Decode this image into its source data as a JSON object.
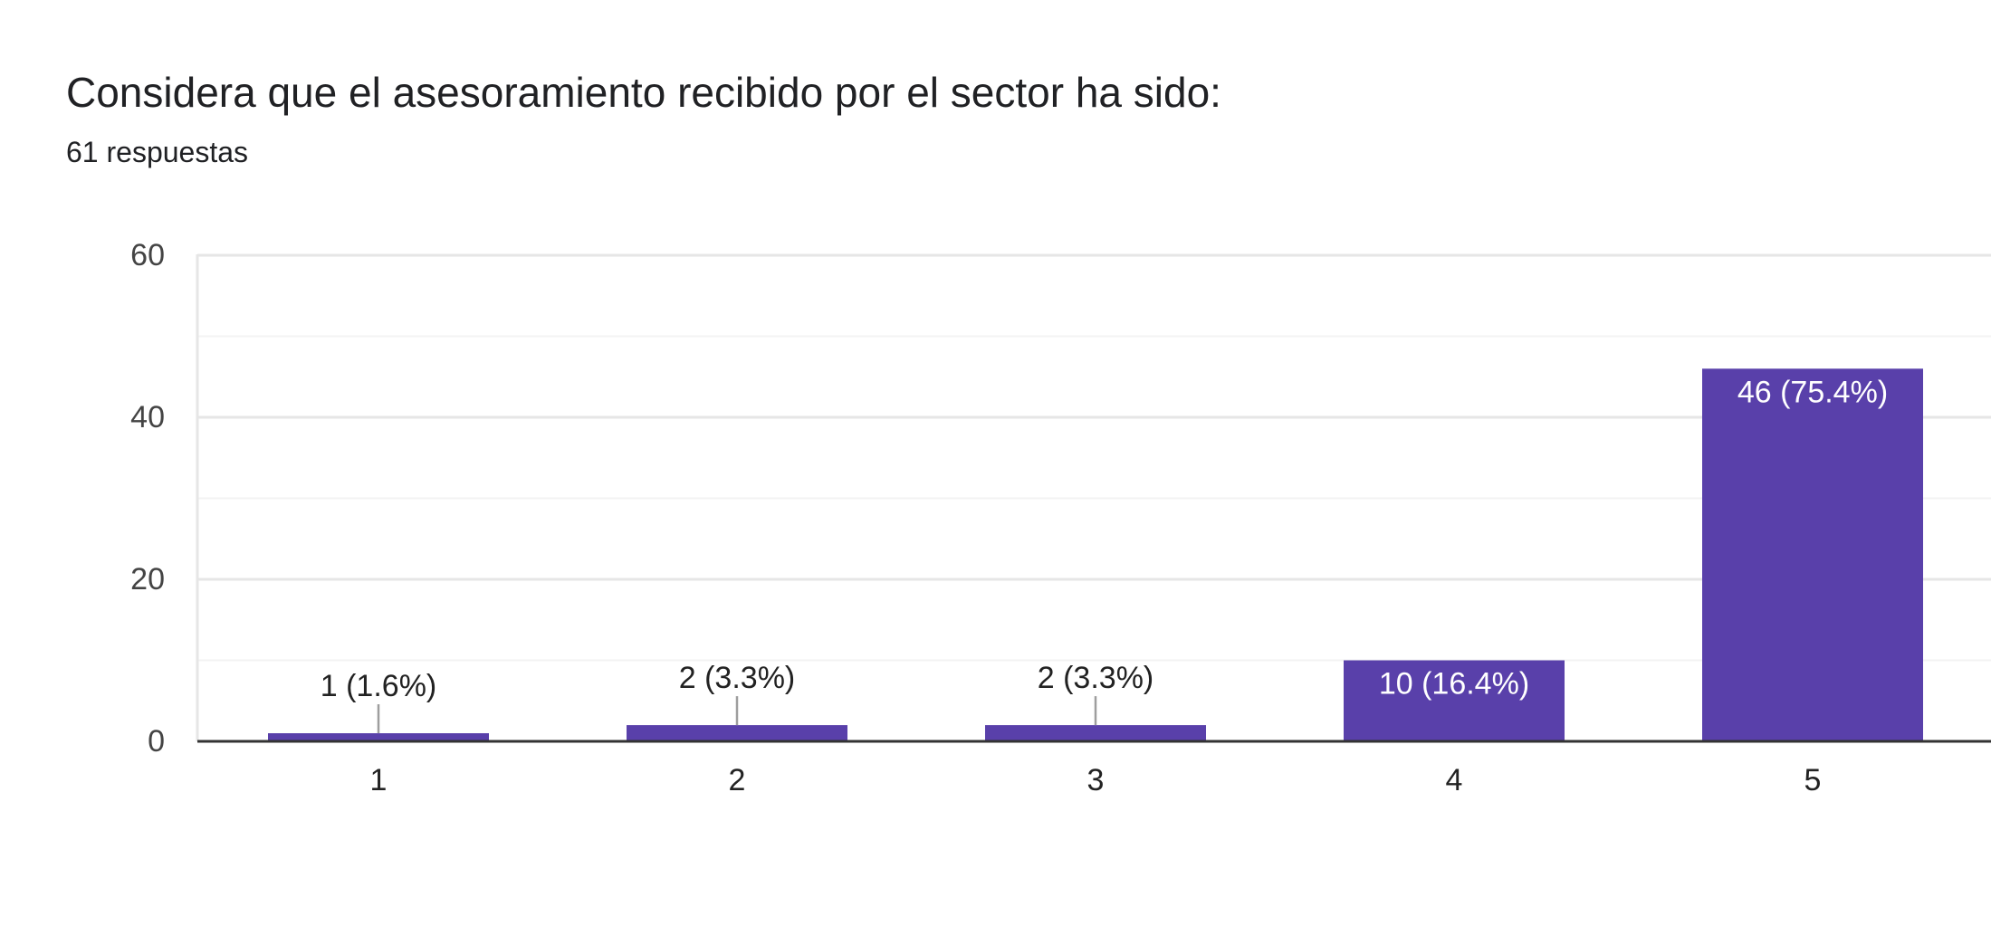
{
  "header": {
    "title": "Considera que el asesoramiento recibido por el sector ha sido:",
    "responses": "61 respuestas"
  },
  "chart_data": {
    "type": "bar",
    "title": "Considera que el asesoramiento recibido por el sector ha sido:",
    "subtitle": "61 respuestas",
    "xlabel": "",
    "ylabel": "",
    "categories": [
      "1",
      "2",
      "3",
      "4",
      "5"
    ],
    "values": [
      1,
      2,
      2,
      10,
      46
    ],
    "data_labels": [
      "1 (1.6%)",
      "2 (3.3%)",
      "2 (3.3%)",
      "10 (16.4%)",
      "46 (75.4%)"
    ],
    "ylim": [
      0,
      60
    ],
    "yticks": [
      0,
      20,
      40,
      60
    ],
    "grid": true,
    "legend": "none",
    "colors": {
      "bar": "#5940aa",
      "grid_major": "#e6e6e6",
      "grid_minor": "#f3f3f3",
      "axis": "#333333",
      "leader": "#9e9e9e",
      "label_inside": "#ffffff",
      "label_outside": "#222222"
    }
  }
}
